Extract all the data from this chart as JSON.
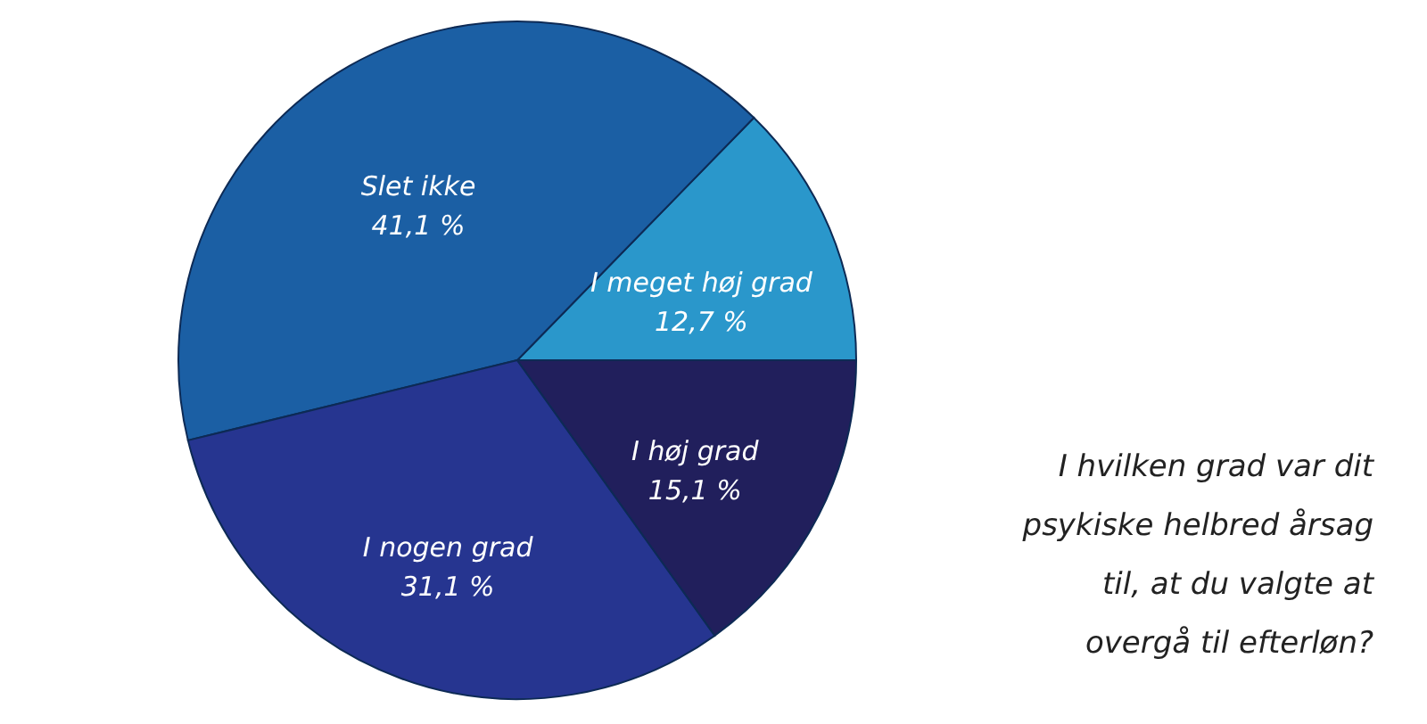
{
  "chart_data": {
    "type": "pie",
    "title": "I hvilken grad var dit psykiske helbred årsag til, at du valgte at overgå til efterløn?",
    "categories": [
      "I meget høj grad",
      "Slet ikke",
      "I nogen grad",
      "I høj grad"
    ],
    "values": [
      12.7,
      41.1,
      31.1,
      15.1
    ],
    "value_labels": [
      "12,7 %",
      "41,1 %",
      "31,1 %",
      "15,1 %"
    ],
    "colors": [
      "#2a97cb",
      "#1b5fa4",
      "#263590",
      "#211f5c"
    ],
    "legend": false
  }
}
